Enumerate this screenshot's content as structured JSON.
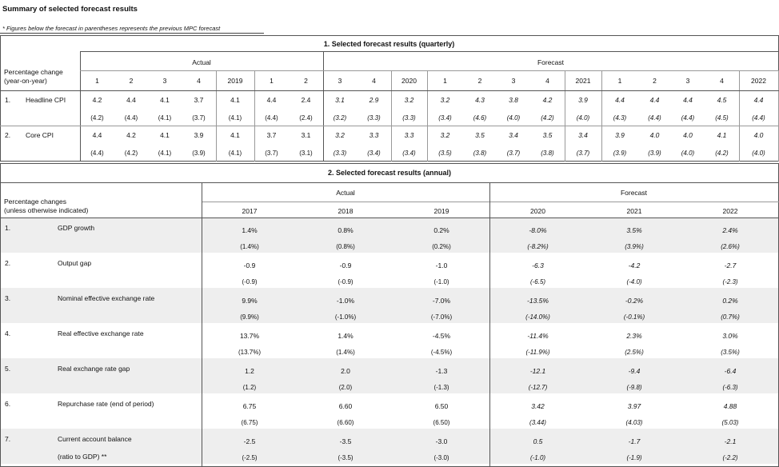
{
  "header": {
    "title": "Summary of selected forecast results",
    "footnote": "* Figures below the forecast in parentheses represents the previous MPC forecast"
  },
  "quarterly": {
    "title": "1. Selected forecast results (quarterly)",
    "row_header": [
      "Percentage change",
      "(year-on-year)"
    ],
    "groups": [
      {
        "label": "Actual",
        "columns": [
          "1",
          "2",
          "3",
          "4",
          "2019",
          "1",
          "2"
        ]
      },
      {
        "label": "Forecast",
        "columns": [
          "3",
          "4",
          "2020",
          "1",
          "2",
          "3",
          "4",
          "2021",
          "1",
          "2",
          "3",
          "4",
          "2022"
        ]
      }
    ],
    "rows": [
      {
        "number": "1.",
        "name": "Headline CPI",
        "values": [
          "4.2",
          "4.4",
          "4.1",
          "3.7",
          "4.1",
          "4.4",
          "2.4",
          "3.1",
          "2.9",
          "3.2",
          "3.2",
          "4.3",
          "3.8",
          "4.2",
          "3.9",
          "4.4",
          "4.4",
          "4.4",
          "4.5",
          "4.4"
        ],
        "previous": [
          "(4.2)",
          "(4.4)",
          "(4.1)",
          "(3.7)",
          "(4.1)",
          "(4.4)",
          "(2.4)",
          "(3.2)",
          "(3.3)",
          "(3.3)",
          "(3.4)",
          "(4.6)",
          "(4.0)",
          "(4.2)",
          "(4.0)",
          "(4.3)",
          "(4.4)",
          "(4.4)",
          "(4.5)",
          "(4.4)"
        ]
      },
      {
        "number": "2.",
        "name": "Core CPI",
        "values": [
          "4.4",
          "4.2",
          "4.1",
          "3.9",
          "4.1",
          "3.7",
          "3.1",
          "3.2",
          "3.3",
          "3.3",
          "3.2",
          "3.5",
          "3.4",
          "3.5",
          "3.4",
          "3.9",
          "4.0",
          "4.0",
          "4.1",
          "4.0"
        ],
        "previous": [
          "(4.4)",
          "(4.2)",
          "(4.1)",
          "(3.9)",
          "(4.1)",
          "(3.7)",
          "(3.1)",
          "(3.3)",
          "(3.4)",
          "(3.4)",
          "(3.5)",
          "(3.8)",
          "(3.7)",
          "(3.8)",
          "(3.7)",
          "(3.9)",
          "(3.9)",
          "(4.0)",
          "(4.2)",
          "(4.0)"
        ]
      }
    ]
  },
  "annual": {
    "title": "2. Selected forecast results (annual)",
    "row_header": [
      "Percentage changes",
      "(unless otherwise indicated)"
    ],
    "groups": [
      {
        "label": "Actual",
        "columns": [
          "2017",
          "2018",
          "2019"
        ]
      },
      {
        "label": "Forecast",
        "columns": [
          "2020",
          "2021",
          "2022"
        ]
      }
    ],
    "rows": [
      {
        "number": "1.",
        "name": "GDP growth",
        "values": [
          "1.4%",
          "0.8%",
          "0.2%",
          "-8.0%",
          "3.5%",
          "2.4%"
        ],
        "previous": [
          "(1.4%)",
          "(0.8%)",
          "(0.2%)",
          "(-8.2%)",
          "(3.9%)",
          "(2.6%)"
        ]
      },
      {
        "number": "2.",
        "name": "Output gap",
        "values": [
          "-0.9",
          "-0.9",
          "-1.0",
          "-6.3",
          "-4.2",
          "-2.7"
        ],
        "previous": [
          "(-0.9)",
          "(-0.9)",
          "(-1.0)",
          "(-6.5)",
          "(-4.0)",
          "(-2.3)"
        ]
      },
      {
        "number": "3.",
        "name": "Nominal effective exchange rate",
        "values": [
          "9.9%",
          "-1.0%",
          "-7.0%",
          "-13.5%",
          "-0.2%",
          "0.2%"
        ],
        "previous": [
          "(9.9%)",
          "(-1.0%)",
          "(-7.0%)",
          "(-14.0%)",
          "(-0.1%)",
          "(0.7%)"
        ]
      },
      {
        "number": "4.",
        "name": "Real effective exchange rate",
        "values": [
          "13.7%",
          "1.4%",
          "-4.5%",
          "-11.4%",
          "2.3%",
          "3.0%"
        ],
        "previous": [
          "(13.7%)",
          "(1.4%)",
          "(-4.5%)",
          "(-11.9%)",
          "(2.5%)",
          "(3.5%)"
        ]
      },
      {
        "number": "5.",
        "name": "Real exchange rate gap",
        "values": [
          "1.2",
          "2.0",
          "-1.3",
          "-12.1",
          "-9.4",
          "-6.4"
        ],
        "previous": [
          "(1.2)",
          "(2.0)",
          "(-1.3)",
          "(-12.7)",
          "(-9.8)",
          "(-6.3)"
        ]
      },
      {
        "number": "6.",
        "name": "Repurchase rate (end of period)",
        "values": [
          "6.75",
          "6.60",
          "6.50",
          "3.42",
          "3.97",
          "4.88"
        ],
        "previous": [
          "(6.75)",
          "(6.60)",
          "(6.50)",
          "(3.44)",
          "(4.03)",
          "(5.03)"
        ]
      },
      {
        "number": "7.",
        "name": "Current account balance",
        "note": "(ratio to GDP) **",
        "values": [
          "-2.5",
          "-3.5",
          "-3.0",
          "0.5",
          "-1.7",
          "-2.1"
        ],
        "previous": [
          "(-2.5)",
          "(-3.5)",
          "(-3.0)",
          "(-1.0)",
          "(-1.9)",
          "(-2.2)"
        ]
      }
    ]
  }
}
